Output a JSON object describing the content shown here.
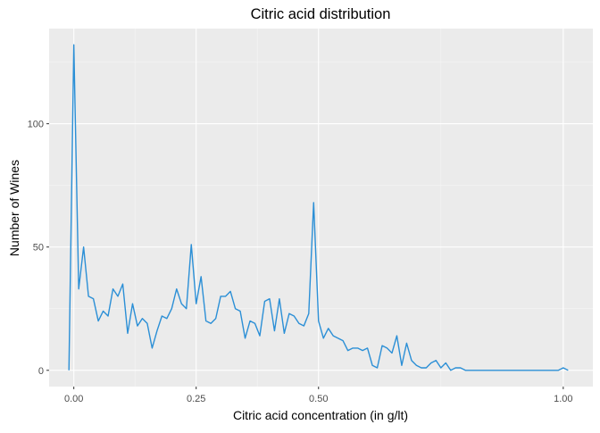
{
  "chart_data": {
    "type": "line",
    "title": "Citric acid distribution",
    "xlabel": "Citric acid concentration (in g/lt)",
    "ylabel": "Number of Wines",
    "xlim": [
      -0.0505,
      1.0605
    ],
    "ylim": [
      -6.6,
      138.6
    ],
    "x_ticks": [
      0.0,
      0.25,
      0.5,
      1.0
    ],
    "x_tick_labels": [
      "0.00",
      "0.25",
      "0.50",
      "1.00"
    ],
    "y_ticks": [
      0,
      50,
      100
    ],
    "y_tick_labels": [
      "0",
      "50",
      "100"
    ],
    "grid": true,
    "line_color": "#2b8fd6",
    "panel_color": "#ebebeb",
    "series": [
      {
        "x": [
          -0.01,
          0.0,
          0.01,
          0.02,
          0.03,
          0.04,
          0.05,
          0.06,
          0.07,
          0.08,
          0.09,
          0.1,
          0.11,
          0.12,
          0.13,
          0.14,
          0.15,
          0.16,
          0.17,
          0.18,
          0.19,
          0.2,
          0.21,
          0.22,
          0.23,
          0.24,
          0.25,
          0.26,
          0.27,
          0.28,
          0.29,
          0.3,
          0.31,
          0.32,
          0.33,
          0.34,
          0.35,
          0.36,
          0.37,
          0.38,
          0.39,
          0.4,
          0.41,
          0.42,
          0.43,
          0.44,
          0.45,
          0.46,
          0.47,
          0.48,
          0.49,
          0.5,
          0.51,
          0.52,
          0.53,
          0.54,
          0.55,
          0.56,
          0.57,
          0.58,
          0.59,
          0.6,
          0.61,
          0.62,
          0.63,
          0.64,
          0.65,
          0.66,
          0.67,
          0.68,
          0.69,
          0.7,
          0.71,
          0.72,
          0.73,
          0.74,
          0.75,
          0.76,
          0.77,
          0.78,
          0.79,
          0.8,
          0.81,
          0.82,
          0.83,
          0.84,
          0.85,
          0.86,
          0.87,
          0.88,
          0.89,
          0.9,
          0.91,
          0.92,
          0.93,
          0.94,
          0.95,
          0.96,
          0.97,
          0.98,
          0.99,
          1.0,
          1.01
        ],
        "values": [
          0,
          132,
          33,
          50,
          30,
          29,
          20,
          24,
          22,
          33,
          30,
          35,
          15,
          27,
          18,
          21,
          19,
          9,
          16,
          22,
          21,
          25,
          33,
          27,
          25,
          51,
          27,
          38,
          20,
          19,
          21,
          30,
          30,
          32,
          25,
          24,
          13,
          20,
          19,
          14,
          28,
          29,
          16,
          29,
          15,
          23,
          22,
          19,
          18,
          23,
          68,
          20,
          13,
          17,
          14,
          13,
          12,
          8,
          9,
          9,
          8,
          9,
          2,
          1,
          10,
          9,
          7,
          14,
          2,
          11,
          4,
          2,
          1,
          1,
          3,
          4,
          1,
          3,
          0,
          1,
          1,
          0,
          0,
          0,
          0,
          0,
          0,
          0,
          0,
          0,
          0,
          0,
          0,
          0,
          0,
          0,
          0,
          0,
          0,
          0,
          0,
          1,
          0
        ]
      }
    ]
  }
}
